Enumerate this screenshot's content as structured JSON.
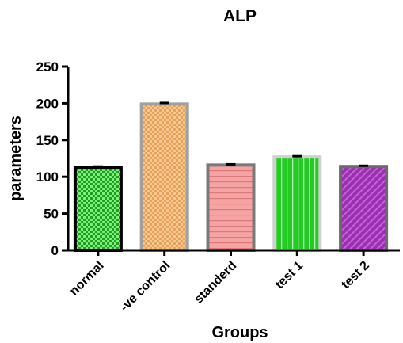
{
  "chart_data": {
    "type": "bar",
    "title": "ALP",
    "xlabel": "Groups",
    "ylabel": "parameters",
    "ylim": [
      0,
      250
    ],
    "yticks": [
      0,
      50,
      100,
      150,
      200,
      250
    ],
    "categories": [
      "normal",
      "-ve control",
      "standerd",
      "test 1",
      "test 2"
    ],
    "values": [
      113,
      199,
      116,
      127,
      114
    ],
    "errors": [
      1,
      1.5,
      1,
      1,
      1
    ],
    "grid": false,
    "legend": "none",
    "bars": [
      {
        "fill": "#1f9e1f",
        "pattern_color": "#7cf07c",
        "pattern": "checker",
        "border": "#000000"
      },
      {
        "fill": "#e8a15a",
        "pattern_color": "#f5c98f",
        "pattern": "checker",
        "border": "#a0a0a0"
      },
      {
        "fill": "#f5a3a3",
        "pattern_color": "#d97b7b",
        "pattern": "horizontal-lines",
        "border": "#7a7a7a"
      },
      {
        "fill": "#22cc22",
        "pattern_color": "#b8f0b8",
        "pattern": "vertical-lines",
        "border": "#d0d0d0"
      },
      {
        "fill": "#9a2fb0",
        "pattern_color": "#c462d8",
        "pattern": "diagonal-lines",
        "border": "#6a6a6a"
      }
    ]
  }
}
